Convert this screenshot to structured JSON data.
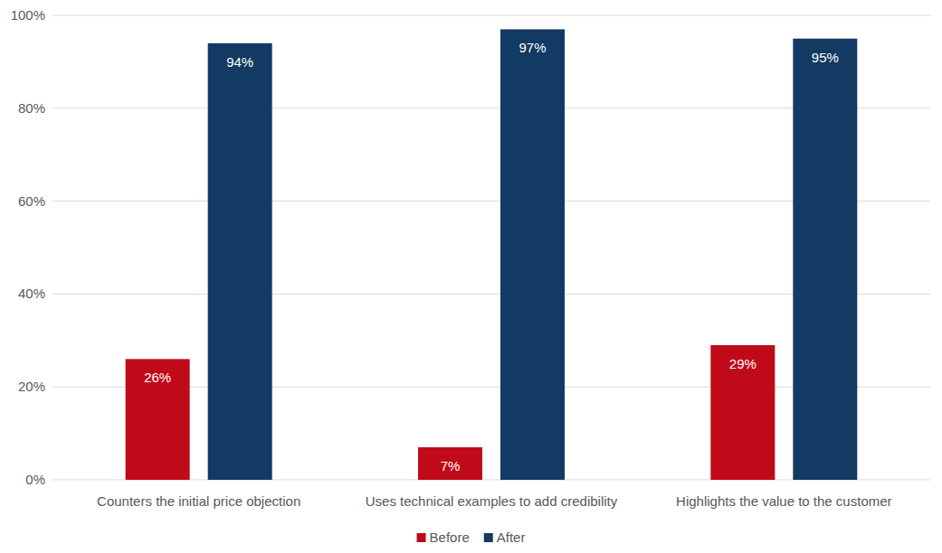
{
  "chart_data": {
    "type": "bar",
    "categories": [
      "Counters the initial price objection",
      "Uses technical examples to add credibility",
      "Highlights the value to the customer"
    ],
    "series": [
      {
        "name": "Before",
        "color": "#c00a1a",
        "values": [
          26,
          7,
          29
        ],
        "value_labels": [
          "26%",
          "7%",
          "29%"
        ]
      },
      {
        "name": "After",
        "color": "#133a62",
        "values": [
          94,
          97,
          95
        ],
        "value_labels": [
          "94%",
          "97%",
          "95%"
        ]
      }
    ],
    "ylim": [
      0,
      100
    ],
    "yticks": [
      {
        "value": 0,
        "label": "0%"
      },
      {
        "value": 20,
        "label": "20%"
      },
      {
        "value": 40,
        "label": "40%"
      },
      {
        "value": 60,
        "label": "60%"
      },
      {
        "value": 80,
        "label": "80%"
      },
      {
        "value": 100,
        "label": "100%"
      }
    ],
    "grid": true,
    "legend": "bottom",
    "data_labels": true
  }
}
